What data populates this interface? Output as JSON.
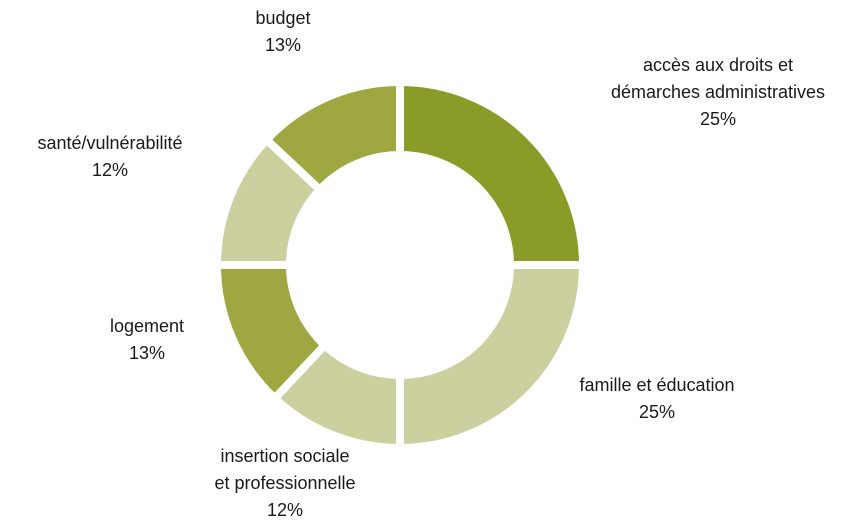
{
  "chart_data": {
    "type": "donut",
    "categories": [
      [
        "accès aux droits et",
        "démarches administratives"
      ],
      [
        "famille et éducation"
      ],
      [
        "insertion sociale",
        "et professionnelle"
      ],
      [
        "logement"
      ],
      [
        "santé/vulnérabilité"
      ],
      [
        "budget"
      ]
    ],
    "values": [
      25,
      25,
      12,
      13,
      12,
      13
    ],
    "value_labels": [
      "25%",
      "25%",
      "12%",
      "13%",
      "12%",
      "13%"
    ],
    "colors": [
      "#8a9b28",
      "#cbd09e",
      "#cbd09e",
      "#9fa741",
      "#cbd09e",
      "#9fa741"
    ]
  }
}
